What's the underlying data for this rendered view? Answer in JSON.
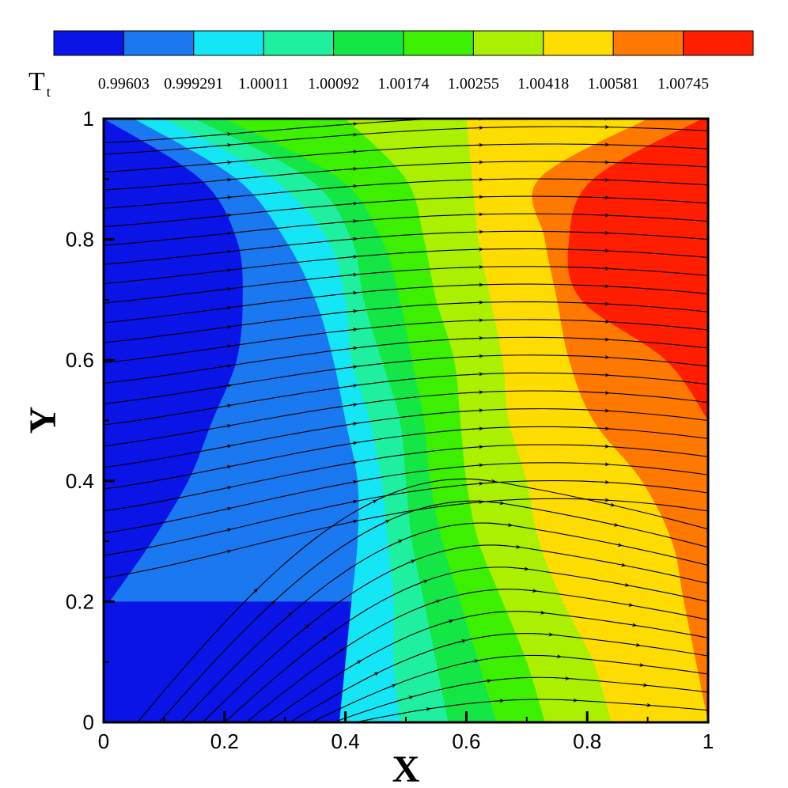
{
  "chart_data": {
    "type": "heatmap",
    "subtype": "filled-contour-with-streamlines",
    "title": "",
    "xlabel": "X",
    "ylabel": "Y",
    "xlim": [
      0,
      1
    ],
    "ylim": [
      0,
      1
    ],
    "xticks": [
      "0",
      "0.2",
      "0.4",
      "0.6",
      "0.8",
      "1"
    ],
    "yticks": [
      "0",
      "0.2",
      "0.4",
      "0.6",
      "0.8",
      "1"
    ],
    "grid": false,
    "legend": {
      "variable": "T",
      "variable_subscript": "t",
      "placement": "top",
      "levels": [
        "0.99603",
        "0.999291",
        "1.00011",
        "1.00092",
        "1.00174",
        "1.00255",
        "1.00418",
        "1.00581",
        "1.00745"
      ],
      "colors": [
        "#0a14e6",
        "#1a78f0",
        "#14e6f5",
        "#1ef0a0",
        "#14e646",
        "#3cf000",
        "#aaf000",
        "#ffdc00",
        "#ff7800",
        "#ff1e00"
      ]
    },
    "contour_boundaries_x_at_y": {
      "y": [
        0,
        0.1,
        0.2,
        0.3,
        0.4,
        0.5,
        0.6,
        0.7,
        0.8,
        0.9,
        1.0
      ],
      "b1": [
        null,
        null,
        0.01,
        0.08,
        0.14,
        0.18,
        0.22,
        0.23,
        0.22,
        0.16,
        0.0
      ],
      "b2": [
        0.39,
        0.4,
        0.41,
        0.42,
        0.42,
        0.4,
        0.38,
        0.35,
        0.3,
        0.22,
        0.05
      ],
      "b3": [
        0.49,
        0.48,
        0.48,
        0.47,
        0.46,
        0.44,
        0.41,
        0.4,
        0.37,
        0.28,
        0.1
      ],
      "b4": [
        0.57,
        0.55,
        0.53,
        0.51,
        0.5,
        0.49,
        0.46,
        0.43,
        0.41,
        0.34,
        0.15
      ],
      "b5": [
        0.65,
        0.62,
        0.59,
        0.56,
        0.54,
        0.53,
        0.51,
        0.49,
        0.46,
        0.39,
        0.2
      ],
      "b6": [
        0.73,
        0.7,
        0.66,
        0.62,
        0.6,
        0.59,
        0.58,
        0.55,
        0.53,
        0.5,
        0.4
      ],
      "b7": [
        0.84,
        0.81,
        0.76,
        0.72,
        0.7,
        0.67,
        0.66,
        0.64,
        0.62,
        0.61,
        0.6
      ],
      "b8": [
        1.0,
        0.98,
        0.96,
        0.94,
        0.89,
        0.81,
        0.77,
        0.75,
        0.73,
        0.72,
        0.9
      ],
      "b9": [
        null,
        null,
        null,
        null,
        null,
        1.0,
        0.93,
        0.79,
        0.77,
        0.81,
        0.99
      ]
    },
    "streamlines": {
      "right_edge_y": [
        1.0,
        0.98,
        0.95,
        0.92,
        0.89,
        0.86,
        0.83,
        0.8,
        0.77,
        0.74,
        0.71,
        0.68,
        0.65,
        0.62,
        0.59,
        0.56,
        0.53,
        0.5,
        0.47,
        0.44,
        0.41,
        0.38,
        0.35,
        0.32,
        0.29,
        0.26,
        0.23,
        0.2,
        0.17,
        0.14,
        0.11,
        0.08,
        0.05,
        0.02
      ]
    }
  }
}
